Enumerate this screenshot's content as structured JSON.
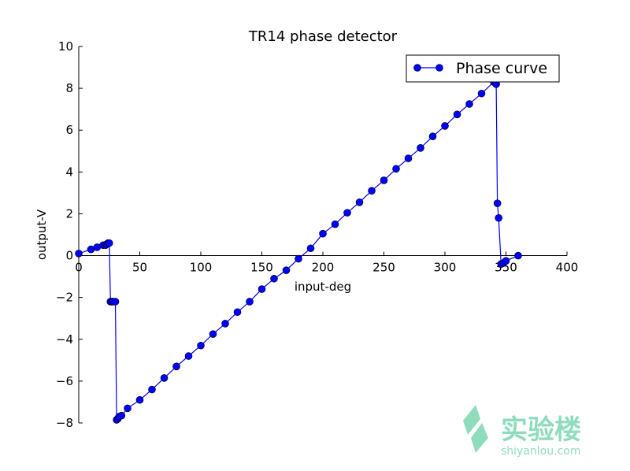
{
  "chart_data": {
    "type": "line",
    "title": "TR14 phase detector",
    "xlabel": "input-deg",
    "ylabel": "output-V",
    "xlim": [
      0,
      400
    ],
    "ylim": [
      -8,
      10
    ],
    "xticks": [
      0,
      50,
      100,
      150,
      200,
      250,
      300,
      350,
      400
    ],
    "yticks": [
      -8,
      -6,
      -4,
      -2,
      0,
      2,
      4,
      6,
      8,
      10
    ],
    "grid": false,
    "legend_position": "top-right",
    "series": [
      {
        "name": "Phase curve",
        "color": "#0000ff",
        "marker": "circle",
        "x": [
          0,
          10,
          15,
          20,
          22,
          23,
          24,
          25,
          26,
          27,
          28,
          30,
          31,
          32,
          33,
          35,
          40,
          50,
          60,
          70,
          80,
          90,
          100,
          110,
          120,
          130,
          140,
          150,
          160,
          170,
          180,
          190,
          200,
          210,
          220,
          230,
          240,
          250,
          260,
          270,
          280,
          290,
          300,
          310,
          320,
          330,
          340,
          342,
          343,
          344,
          346,
          348,
          350,
          360
        ],
        "y": [
          0.1,
          0.3,
          0.4,
          0.5,
          0.5,
          0.55,
          0.6,
          0.6,
          -2.2,
          -2.2,
          -2.2,
          -2.2,
          -7.85,
          -7.8,
          -7.7,
          -7.65,
          -7.3,
          -6.9,
          -6.4,
          -5.85,
          -5.3,
          -4.8,
          -4.3,
          -3.75,
          -3.25,
          -2.7,
          -2.2,
          -1.6,
          -1.1,
          -0.7,
          -0.15,
          0.35,
          1.05,
          1.5,
          2.05,
          2.55,
          3.1,
          3.6,
          4.15,
          4.65,
          5.15,
          5.7,
          6.2,
          6.75,
          7.25,
          7.75,
          8.3,
          8.2,
          2.5,
          1.8,
          -0.4,
          -0.35,
          -0.25,
          0
        ]
      }
    ]
  },
  "watermark": {
    "text_cn": "实验楼",
    "text_en": "shiyanlou.com",
    "color": "#8fdcbc"
  }
}
